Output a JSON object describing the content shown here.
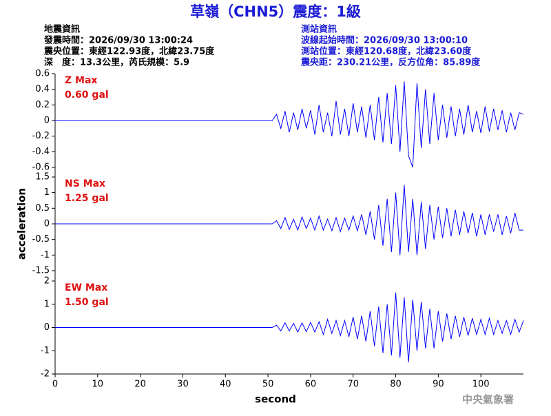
{
  "header": {
    "title": "草嶺（CHN5）震度：1級",
    "left": [
      "地震資訊",
      "發震時間：2026/09/30 13:00:24",
      "震央位置：東經122.93度，北緯23.75度",
      "深　度：13.3公里，芮氏規模：5.9"
    ],
    "right": [
      "測站資訊",
      "波線起始時間：2026/09/30 13:00:10",
      "測站位置：東經120.68度，北緯23.60度",
      "震央距：230.21公里，反方位角：85.89度"
    ]
  },
  "footer": "中央氣象署",
  "chart_data": [
    {
      "type": "line",
      "label": "Z Max",
      "max_label": "0.60 gal",
      "color": "#0000ff",
      "xlim": [
        0,
        110
      ],
      "ylim": [
        -0.6,
        0.6
      ],
      "yticks": [
        0.6,
        0.4,
        0.2,
        0,
        -0.2,
        -0.4,
        -0.6
      ],
      "x": [
        0,
        51,
        52,
        53,
        54,
        55,
        56,
        57,
        58,
        59,
        60,
        61,
        62,
        63,
        64,
        65,
        66,
        67,
        68,
        69,
        70,
        71,
        72,
        73,
        74,
        75,
        76,
        77,
        78,
        79,
        80,
        81,
        82,
        83,
        84,
        85,
        86,
        87,
        88,
        89,
        90,
        91,
        92,
        93,
        94,
        95,
        96,
        97,
        98,
        99,
        100,
        101,
        102,
        103,
        104,
        105,
        106,
        107,
        108,
        109,
        110
      ],
      "values": [
        0,
        0,
        0.08,
        -0.1,
        0.12,
        -0.15,
        0.1,
        -0.12,
        0.15,
        -0.1,
        0.13,
        -0.18,
        0.2,
        -0.15,
        0.1,
        -0.2,
        0.25,
        -0.18,
        0.15,
        -0.2,
        0.22,
        -0.15,
        0.18,
        -0.22,
        0.2,
        -0.25,
        0.3,
        -0.28,
        0.35,
        -0.3,
        0.45,
        -0.4,
        0.5,
        -0.45,
        -0.6,
        0.48,
        -0.35,
        0.4,
        -0.3,
        0.35,
        -0.25,
        0.2,
        -0.22,
        0.18,
        -0.2,
        0.15,
        -0.18,
        0.2,
        -0.15,
        0.12,
        -0.16,
        0.18,
        -0.14,
        0.15,
        -0.12,
        0.13,
        -0.15,
        0.1,
        -0.12,
        0.1,
        0.08
      ]
    },
    {
      "type": "line",
      "label": "NS Max",
      "max_label": "1.25 gal",
      "color": "#0000ff",
      "ylabel": "acceleration",
      "xlim": [
        0,
        110
      ],
      "ylim": [
        -1.5,
        1.5
      ],
      "yticks": [
        1.5,
        1,
        0.5,
        0,
        -0.5,
        -1,
        -1.5
      ],
      "x": [
        0,
        51,
        52,
        53,
        54,
        55,
        56,
        57,
        58,
        59,
        60,
        61,
        62,
        63,
        64,
        65,
        66,
        67,
        68,
        69,
        70,
        71,
        72,
        73,
        74,
        75,
        76,
        77,
        78,
        79,
        80,
        81,
        82,
        83,
        84,
        85,
        86,
        87,
        88,
        89,
        90,
        91,
        92,
        93,
        94,
        95,
        96,
        97,
        98,
        99,
        100,
        101,
        102,
        103,
        104,
        105,
        106,
        107,
        108,
        109,
        110
      ],
      "values": [
        0,
        0,
        0.1,
        -0.15,
        0.2,
        -0.18,
        0.15,
        -0.2,
        0.22,
        -0.15,
        0.18,
        -0.2,
        0.25,
        -0.2,
        0.15,
        -0.22,
        0.2,
        -0.25,
        0.18,
        -0.2,
        0.25,
        -0.22,
        0.3,
        -0.35,
        0.4,
        -0.5,
        0.6,
        -0.7,
        0.8,
        -0.9,
        1.0,
        -1.0,
        1.25,
        -0.9,
        0.8,
        -1.0,
        0.7,
        -0.8,
        0.6,
        -0.5,
        0.55,
        -0.45,
        0.5,
        -0.4,
        0.45,
        -0.35,
        0.4,
        -0.3,
        0.35,
        -0.4,
        0.3,
        -0.35,
        0.3,
        -0.25,
        0.3,
        -0.35,
        0.25,
        -0.3,
        0.35,
        -0.2,
        -0.2
      ]
    },
    {
      "type": "line",
      "label": "EW Max",
      "max_label": "1.50 gal",
      "color": "#0000ff",
      "xlabel": "second",
      "xlim": [
        0,
        110
      ],
      "xticks": [
        0,
        10,
        20,
        30,
        40,
        50,
        60,
        70,
        80,
        90,
        100
      ],
      "ylim": [
        -2,
        2
      ],
      "yticks": [
        2,
        1,
        0,
        -1,
        -2
      ],
      "x": [
        0,
        51,
        52,
        53,
        54,
        55,
        56,
        57,
        58,
        59,
        60,
        61,
        62,
        63,
        64,
        65,
        66,
        67,
        68,
        69,
        70,
        71,
        72,
        73,
        74,
        75,
        76,
        77,
        78,
        79,
        80,
        81,
        82,
        83,
        84,
        85,
        86,
        87,
        88,
        89,
        90,
        91,
        92,
        93,
        94,
        95,
        96,
        97,
        98,
        99,
        100,
        101,
        102,
        103,
        104,
        105,
        106,
        107,
        108,
        109,
        110
      ],
      "values": [
        0,
        0,
        0.1,
        -0.15,
        0.2,
        -0.15,
        0.18,
        -0.2,
        0.2,
        -0.18,
        0.22,
        -0.2,
        0.25,
        -0.3,
        0.35,
        -0.25,
        0.3,
        -0.35,
        0.3,
        -0.4,
        0.45,
        -0.5,
        0.5,
        -0.6,
        0.7,
        -0.8,
        0.9,
        -1.1,
        1.0,
        -1.2,
        1.5,
        -1.3,
        1.3,
        -1.5,
        1.2,
        -1.0,
        1.1,
        -0.9,
        0.8,
        -0.9,
        0.7,
        -0.6,
        0.6,
        -0.5,
        0.5,
        -0.4,
        0.45,
        -0.35,
        0.4,
        -0.3,
        0.35,
        -0.3,
        0.4,
        -0.3,
        0.3,
        -0.25,
        0.3,
        -0.3,
        0.35,
        -0.2,
        0.3
      ]
    }
  ]
}
